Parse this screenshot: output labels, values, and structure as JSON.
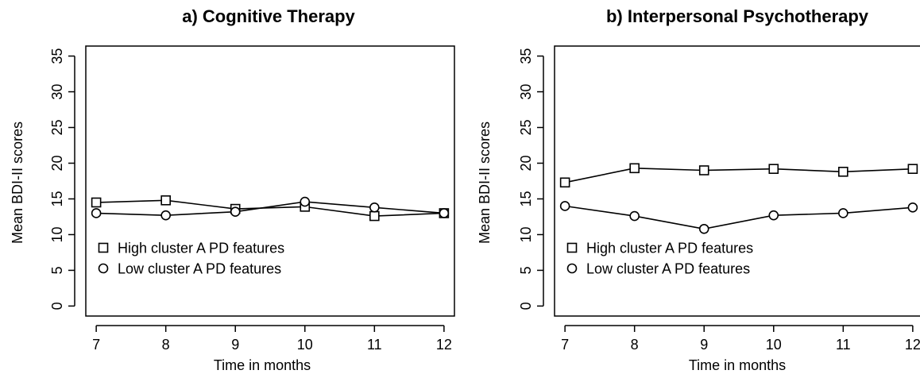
{
  "chart_data": [
    {
      "type": "line",
      "title": "a) Cognitive Therapy",
      "xlabel": "Time in months",
      "ylabel": "Mean BDI-II scores",
      "x": [
        7,
        8,
        9,
        10,
        11,
        12
      ],
      "xticks": [
        "7",
        "8",
        "9",
        "10",
        "11",
        "12"
      ],
      "yticks": [
        "0",
        "5",
        "10",
        "15",
        "20",
        "25",
        "30",
        "35"
      ],
      "ylim": [
        0,
        35
      ],
      "legend_position": "bottom-left",
      "series": [
        {
          "name": "High cluster A PD features",
          "marker": "square",
          "values": [
            14.5,
            14.8,
            13.6,
            13.9,
            12.6,
            13.0
          ]
        },
        {
          "name": "Low cluster A PD features",
          "marker": "circle",
          "values": [
            13.0,
            12.7,
            13.2,
            14.6,
            13.8,
            13.0
          ]
        }
      ]
    },
    {
      "type": "line",
      "title": "b) Interpersonal Psychotherapy",
      "xlabel": "Time in months",
      "ylabel": "Mean BDI-II scores",
      "x": [
        7,
        8,
        9,
        10,
        11,
        12
      ],
      "xticks": [
        "7",
        "8",
        "9",
        "10",
        "11",
        "12"
      ],
      "yticks": [
        "0",
        "5",
        "10",
        "15",
        "20",
        "25",
        "30",
        "35"
      ],
      "ylim": [
        0,
        35
      ],
      "legend_position": "bottom-left",
      "series": [
        {
          "name": "High cluster A PD features",
          "marker": "square",
          "values": [
            17.3,
            19.3,
            19.0,
            19.2,
            18.8,
            19.2
          ]
        },
        {
          "name": "Low cluster A PD features",
          "marker": "circle",
          "values": [
            14.0,
            12.6,
            10.8,
            12.7,
            13.0,
            13.8
          ]
        }
      ]
    }
  ]
}
